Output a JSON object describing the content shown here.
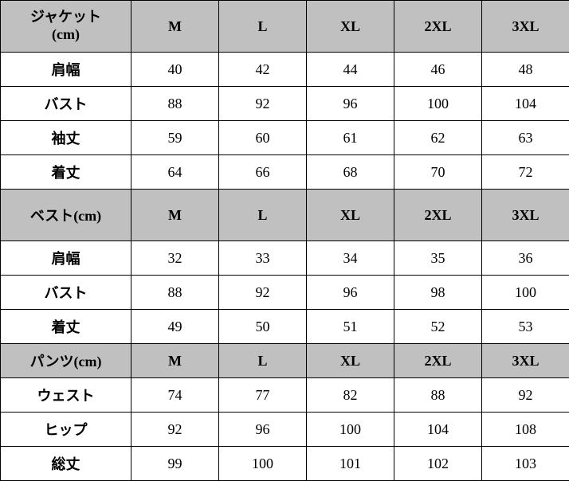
{
  "sections": [
    {
      "header": {
        "label_lines": [
          "ジャケット",
          "(cm)"
        ],
        "sizes": [
          "M",
          "L",
          "XL",
          "2XL",
          "3XL"
        ],
        "tall": true
      },
      "rows": [
        {
          "label": "肩幅",
          "values": [
            "40",
            "42",
            "44",
            "46",
            "48"
          ]
        },
        {
          "label": "バスト",
          "values": [
            "88",
            "92",
            "96",
            "100",
            "104"
          ]
        },
        {
          "label": "袖丈",
          "values": [
            "59",
            "60",
            "61",
            "62",
            "63"
          ]
        },
        {
          "label": "着丈",
          "values": [
            "64",
            "66",
            "68",
            "70",
            "72"
          ]
        }
      ]
    },
    {
      "header": {
        "label": "ベスト(cm)",
        "sizes": [
          "M",
          "L",
          "XL",
          "2XL",
          "3XL"
        ],
        "tall": true
      },
      "rows": [
        {
          "label": "肩幅",
          "values": [
            "32",
            "33",
            "34",
            "35",
            "36"
          ]
        },
        {
          "label": "バスト",
          "values": [
            "88",
            "92",
            "96",
            "98",
            "100"
          ]
        },
        {
          "label": "着丈",
          "values": [
            "49",
            "50",
            "51",
            "52",
            "53"
          ]
        }
      ]
    },
    {
      "header": {
        "label": "パンツ(cm)",
        "sizes": [
          "M",
          "L",
          "XL",
          "2XL",
          "3XL"
        ],
        "tall": false
      },
      "rows": [
        {
          "label": "ウェスト",
          "values": [
            "74",
            "77",
            "82",
            "88",
            "92"
          ]
        },
        {
          "label": "ヒップ",
          "values": [
            "92",
            "96",
            "100",
            "104",
            "108"
          ]
        },
        {
          "label": "総丈",
          "values": [
            "99",
            "100",
            "101",
            "102",
            "103"
          ]
        }
      ]
    }
  ]
}
